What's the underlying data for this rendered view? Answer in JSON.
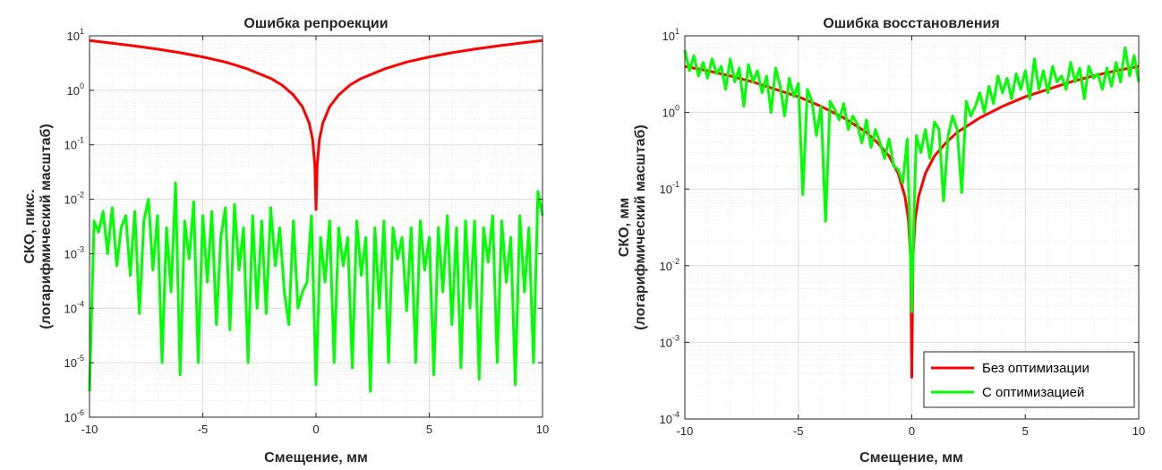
{
  "chart_data": [
    {
      "type": "line",
      "title": "Ошибка репроекции",
      "xlabel": "Смещение, мм",
      "ylabel": [
        "СКО, пикс.",
        "(логарифмический масштаб)"
      ],
      "xlim": [
        -10,
        10
      ],
      "ylim": [
        1e-06,
        10
      ],
      "yscale": "log",
      "grid": true,
      "minor_grid": true,
      "xticks": [
        "-10",
        "-5",
        "0",
        "5",
        "10"
      ],
      "yticks": [
        {
          "base": "10",
          "exp": "-6"
        },
        {
          "base": "10",
          "exp": "-5"
        },
        {
          "base": "10",
          "exp": "-4"
        },
        {
          "base": "10",
          "exp": "-3"
        },
        {
          "base": "10",
          "exp": "-2"
        },
        {
          "base": "10",
          "exp": "-1"
        },
        {
          "base": "10",
          "exp": "0"
        },
        {
          "base": "10",
          "exp": "1"
        }
      ],
      "series": [
        {
          "color": "#ff0000",
          "x": [
            -10,
            -9,
            -8,
            -7,
            -6,
            -5,
            -4,
            -3,
            -2,
            -1.5,
            -1,
            -0.6,
            -0.3,
            -0.15,
            -0.05,
            0,
            0.05,
            0.15,
            0.3,
            0.6,
            1,
            1.5,
            2,
            3,
            4,
            5,
            6,
            7,
            8,
            9,
            10
          ],
          "y": [
            8.2,
            7.3,
            6.5,
            5.7,
            4.9,
            4.1,
            3.3,
            2.45,
            1.65,
            1.25,
            0.82,
            0.5,
            0.25,
            0.125,
            0.042,
            0.0065,
            0.042,
            0.125,
            0.25,
            0.5,
            0.82,
            1.25,
            1.65,
            2.45,
            3.3,
            4.1,
            4.9,
            5.7,
            6.5,
            7.3,
            8.2
          ]
        },
        {
          "color": "#00ff00",
          "x": [
            -10,
            -9.8,
            -9.6,
            -9.4,
            -9.2,
            -9,
            -8.8,
            -8.6,
            -8.4,
            -8.2,
            -8,
            -7.8,
            -7.6,
            -7.4,
            -7.2,
            -7,
            -6.8,
            -6.6,
            -6.4,
            -6.2,
            -6,
            -5.8,
            -5.6,
            -5.4,
            -5.2,
            -5,
            -4.8,
            -4.6,
            -4.4,
            -4.2,
            -4,
            -3.8,
            -3.6,
            -3.4,
            -3.2,
            -3,
            -2.8,
            -2.6,
            -2.4,
            -2.2,
            -2,
            -1.8,
            -1.6,
            -1.4,
            -1.2,
            -1,
            -0.8,
            -0.6,
            -0.4,
            -0.2,
            0,
            0.2,
            0.4,
            0.6,
            0.8,
            1,
            1.2,
            1.4,
            1.6,
            1.8,
            2,
            2.2,
            2.4,
            2.6,
            2.8,
            3,
            3.2,
            3.4,
            3.6,
            3.8,
            4,
            4.2,
            4.4,
            4.6,
            4.8,
            5,
            5.2,
            5.4,
            5.6,
            5.8,
            6,
            6.2,
            6.4,
            6.6,
            6.8,
            7,
            7.2,
            7.4,
            7.6,
            7.8,
            8,
            8.2,
            8.4,
            8.6,
            8.8,
            9,
            9.2,
            9.4,
            9.6,
            9.8,
            10
          ],
          "y": [
            3e-06,
            0.004,
            0.0025,
            0.006,
            0.001,
            0.007,
            0.0006,
            0.003,
            0.005,
            0.0004,
            0.006,
            8e-05,
            0.004,
            0.01,
            0.0005,
            0.005,
            1e-05,
            0.003,
            0.0002,
            0.02,
            6e-06,
            0.004,
            0.0008,
            0.009,
            1e-05,
            0.005,
            0.0003,
            0.006,
            5e-05,
            0.002,
            0.007,
            4e-05,
            0.008,
            0.0005,
            0.003,
            1e-05,
            0.005,
            0.0001,
            0.004,
            8e-05,
            0.007,
            0.0006,
            0.003,
            0.0002,
            5e-05,
            0.004,
            0.0001,
            0.0002,
            0.0003,
            0.005,
            4e-06,
            0.002,
            0.0003,
            0.004,
            1e-05,
            0.003,
            0.0006,
            0.002,
            8e-06,
            0.004,
            0.0004,
            0.002,
            3e-06,
            0.003,
            0.0001,
            0.004,
            1e-05,
            0.003,
            0.0008,
            0.002,
            9e-05,
            0.003,
            1e-05,
            0.004,
            0.0005,
            0.002,
            6e-06,
            0.003,
            0.0002,
            0.005,
            5e-05,
            0.003,
            8e-06,
            0.004,
            0.0001,
            0.004,
            5e-06,
            0.003,
            0.0007,
            0.005,
            1e-05,
            0.004,
            0.0003,
            0.002,
            4e-06,
            0.005,
            0.0002,
            0.003,
            1e-05,
            0.014,
            0.005
          ]
        }
      ]
    },
    {
      "type": "line",
      "title": "Ошибка восстановления",
      "xlabel": "Смещение, мм",
      "ylabel": [
        "СКО, мм",
        "(логарифмический масштаб)"
      ],
      "xlim": [
        -10,
        10
      ],
      "ylim": [
        0.0001,
        10
      ],
      "yscale": "log",
      "grid": true,
      "minor_grid": true,
      "legend_position": "bottom-right",
      "xticks": [
        "-10",
        "-5",
        "0",
        "5",
        "10"
      ],
      "yticks": [
        {
          "base": "10",
          "exp": "-4"
        },
        {
          "base": "10",
          "exp": "-3"
        },
        {
          "base": "10",
          "exp": "-2"
        },
        {
          "base": "10",
          "exp": "-1"
        },
        {
          "base": "10",
          "exp": "0"
        },
        {
          "base": "10",
          "exp": "1"
        }
      ],
      "series": [
        {
          "name": "Без оптимизации",
          "color": "#ff0000",
          "x": [
            -10,
            -9,
            -8,
            -7,
            -6,
            -5,
            -4,
            -3,
            -2,
            -1.5,
            -1,
            -0.6,
            -0.3,
            -0.15,
            -0.05,
            0,
            0.05,
            0.15,
            0.3,
            0.6,
            1,
            1.5,
            2,
            3,
            4,
            5,
            6,
            7,
            8,
            9,
            10
          ],
          "y": [
            4.0,
            3.5,
            3.0,
            2.5,
            2.0,
            1.6,
            1.2,
            0.85,
            0.55,
            0.4,
            0.27,
            0.16,
            0.08,
            0.04,
            0.013,
            0.00035,
            0.013,
            0.04,
            0.08,
            0.16,
            0.27,
            0.4,
            0.55,
            0.85,
            1.2,
            1.6,
            2.0,
            2.5,
            3.0,
            3.5,
            4.0
          ]
        },
        {
          "name": "С оптимизацией",
          "color": "#00ff00",
          "x": [
            -10,
            -9.8,
            -9.6,
            -9.4,
            -9.2,
            -9,
            -8.8,
            -8.6,
            -8.4,
            -8.2,
            -8,
            -7.8,
            -7.6,
            -7.4,
            -7.2,
            -7,
            -6.8,
            -6.6,
            -6.4,
            -6.2,
            -6,
            -5.8,
            -5.6,
            -5.4,
            -5.2,
            -5,
            -4.8,
            -4.6,
            -4.4,
            -4.2,
            -4,
            -3.8,
            -3.6,
            -3.4,
            -3.2,
            -3,
            -2.8,
            -2.6,
            -2.4,
            -2.2,
            -2,
            -1.8,
            -1.6,
            -1.4,
            -1.2,
            -1,
            -0.8,
            -0.6,
            -0.4,
            -0.2,
            -0.1,
            0,
            0.1,
            0.2,
            0.4,
            0.6,
            0.8,
            1,
            1.2,
            1.4,
            1.6,
            1.8,
            2,
            2.2,
            2.4,
            2.6,
            2.8,
            3,
            3.2,
            3.4,
            3.6,
            3.8,
            4,
            4.2,
            4.4,
            4.6,
            4.8,
            5,
            5.2,
            5.4,
            5.6,
            5.8,
            6,
            6.2,
            6.4,
            6.6,
            6.8,
            7,
            7.2,
            7.4,
            7.6,
            7.8,
            8,
            8.2,
            8.4,
            8.6,
            8.8,
            9,
            9.2,
            9.4,
            9.6,
            9.8,
            10
          ],
          "y": [
            6.5,
            3.5,
            5.5,
            3.0,
            4.5,
            2.8,
            5.0,
            3.2,
            4.0,
            2.0,
            5.0,
            2.5,
            3.8,
            1.2,
            4.2,
            2.5,
            3.5,
            1.8,
            3.0,
            1.0,
            3.8,
            2.2,
            0.9,
            2.8,
            1.6,
            2.4,
            0.085,
            2.0,
            1.4,
            0.5,
            1.2,
            0.038,
            1.4,
            1.1,
            0.8,
            1.3,
            0.6,
            0.9,
            0.7,
            0.4,
            0.8,
            0.35,
            0.6,
            0.4,
            0.25,
            0.45,
            0.2,
            0.18,
            0.12,
            0.45,
            0.04,
            0.0025,
            0.05,
            0.5,
            0.3,
            0.6,
            0.25,
            0.75,
            0.6,
            0.07,
            0.5,
            0.9,
            0.6,
            0.09,
            1.4,
            0.9,
            1.2,
            1.8,
            1.0,
            2.2,
            1.3,
            3.0,
            1.8,
            2.8,
            1.5,
            3.2,
            2.0,
            3.5,
            1.5,
            5.0,
            2.0,
            3.5,
            1.8,
            4.0,
            2.5,
            3.0,
            2.0,
            4.5,
            2.5,
            3.8,
            1.5,
            4.0,
            2.8,
            3.2,
            2.0,
            3.8,
            2.2,
            4.5,
            2.5,
            7.0,
            3.0,
            5.5,
            2.5
          ]
        }
      ]
    }
  ]
}
